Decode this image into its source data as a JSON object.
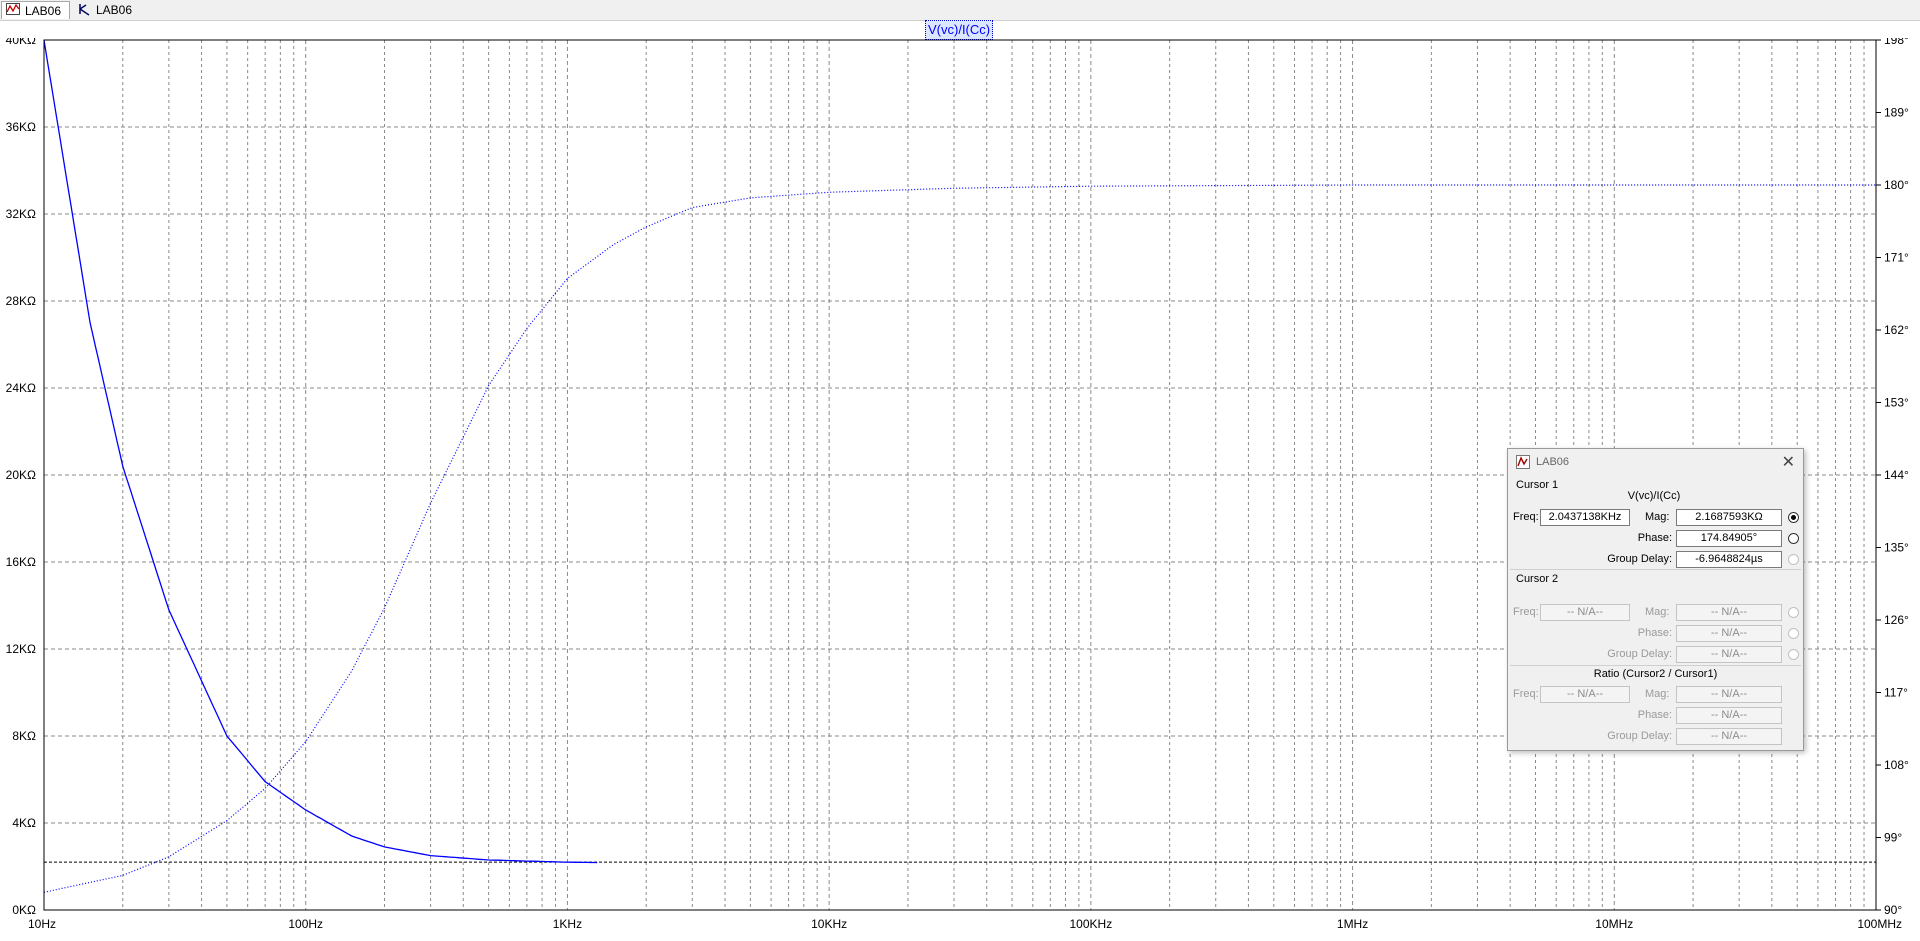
{
  "tabs": [
    {
      "label": "LAB06",
      "icon": "waveform-icon"
    },
    {
      "label": "LAB06",
      "icon": "schematic-icon"
    }
  ],
  "plot": {
    "title": "V(vc)/I(Cc)"
  },
  "colors": {
    "trace": "#0000ff",
    "grid": "#8a8a8a",
    "axis": "#000000"
  },
  "chart_data": {
    "type": "line",
    "title": "V(vc)/I(Cc)",
    "xscale": "log",
    "xlim": [
      10,
      100000000
    ],
    "x_tick_labels": [
      "10Hz",
      "100Hz",
      "1KHz",
      "10KHz",
      "100KHz",
      "1MHz",
      "10MHz",
      "100MHz"
    ],
    "y_left": {
      "lim": [
        0,
        40000
      ],
      "unit": "Ω",
      "tick_labels": [
        "0KΩ",
        "4KΩ",
        "8KΩ",
        "12KΩ",
        "16KΩ",
        "20KΩ",
        "24KΩ",
        "28KΩ",
        "32KΩ",
        "36KΩ",
        "40KΩ"
      ]
    },
    "y_right": {
      "lim": [
        90,
        198
      ],
      "unit": "°",
      "tick_labels": [
        "90°",
        "99°",
        "108°",
        "117°",
        "126°",
        "135°",
        "144°",
        "153°",
        "162°",
        "171°",
        "180°",
        "189°",
        "198°"
      ]
    },
    "grid": true,
    "series": [
      {
        "quantity": "magnitude",
        "style": "solid",
        "axis": "left",
        "x": [
          10,
          15,
          20,
          30,
          50,
          70,
          100,
          150,
          200,
          300,
          500,
          700,
          1000,
          1300
        ],
        "y": [
          40000,
          27000,
          20400,
          13800,
          8000,
          5900,
          4600,
          3400,
          2900,
          2500,
          2300,
          2250,
          2200,
          2180
        ]
      },
      {
        "quantity": "phase",
        "style": "dotted",
        "axis": "right",
        "x": [
          10,
          20,
          30,
          50,
          70,
          100,
          150,
          200,
          300,
          500,
          700,
          1000,
          1500,
          2000,
          3000,
          5000,
          10000,
          30000,
          100000,
          1000000,
          100000000
        ],
        "y": [
          92.2,
          94.3,
          96.6,
          101.1,
          105.1,
          110.9,
          119.7,
          127.5,
          140.5,
          155.1,
          162.2,
          168.4,
          172.6,
          174.8,
          177.2,
          178.4,
          179.1,
          179.6,
          179.85,
          180,
          180
        ]
      }
    ],
    "reference_line": {
      "axis": "left",
      "y": 2200,
      "style": "dashed"
    }
  },
  "cursor_dialog": {
    "title": "LAB06",
    "cursor1": {
      "header": "Cursor 1",
      "trace": "V(vc)/I(Cc)",
      "freq_label": "Freq:",
      "freq": "2.0437138KHz",
      "mag_label": "Mag:",
      "mag": "2.1687593KΩ",
      "phase_label": "Phase:",
      "phase": "174.84905°",
      "gd_label": "Group Delay:",
      "gd": "-6.9648824µs"
    },
    "cursor2": {
      "header": "Cursor 2",
      "freq_label": "Freq:",
      "freq": "-- N/A--",
      "mag_label": "Mag:",
      "mag": "-- N/A--",
      "phase_label": "Phase:",
      "phase": "-- N/A--",
      "gd_label": "Group Delay:",
      "gd": "-- N/A--"
    },
    "ratio": {
      "header": "Ratio (Cursor2 / Cursor1)",
      "freq_label": "Freq:",
      "freq": "-- N/A--",
      "mag_label": "Mag:",
      "mag": "-- N/A--",
      "phase_label": "Phase:",
      "phase": "-- N/A--",
      "gd_label": "Group Delay:",
      "gd": "-- N/A--"
    }
  }
}
